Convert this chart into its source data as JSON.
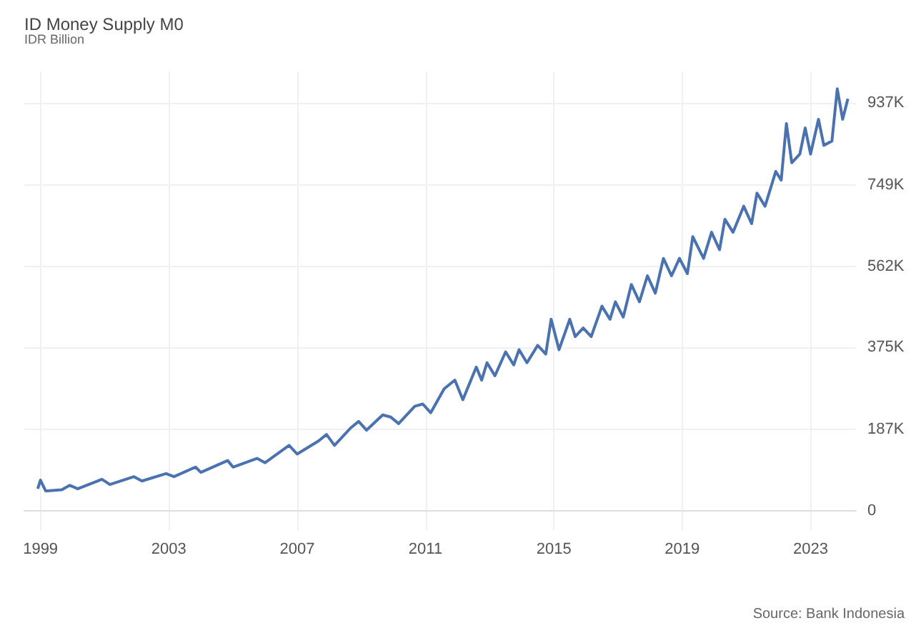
{
  "chart_data": {
    "type": "line",
    "title": "ID Money Supply M0",
    "subtitle": "IDR Billion",
    "annotations": [
      "Source: Bank Indonesia"
    ],
    "x": [
      "1998-12",
      "1999-01",
      "1999-03",
      "1999-09",
      "1999-12",
      "2000-03",
      "2000-12",
      "2001-03",
      "2001-12",
      "2002-03",
      "2002-12",
      "2003-03",
      "2003-11",
      "2004-01",
      "2004-11",
      "2005-01",
      "2005-10",
      "2006-01",
      "2006-10",
      "2007-01",
      "2007-09",
      "2007-12",
      "2008-03",
      "2008-09",
      "2008-12",
      "2009-03",
      "2009-09",
      "2009-12",
      "2010-03",
      "2010-09",
      "2010-12",
      "2011-03",
      "2011-08",
      "2011-12",
      "2012-03",
      "2012-08",
      "2012-10",
      "2012-12",
      "2013-03",
      "2013-07",
      "2013-10",
      "2013-12",
      "2014-03",
      "2014-07",
      "2014-10",
      "2014-12",
      "2015-03",
      "2015-07",
      "2015-09",
      "2015-12",
      "2016-03",
      "2016-07",
      "2016-10",
      "2016-12",
      "2017-03",
      "2017-06",
      "2017-09",
      "2017-12",
      "2018-03",
      "2018-06",
      "2018-09",
      "2018-12",
      "2019-03",
      "2019-05",
      "2019-09",
      "2019-12",
      "2020-03",
      "2020-05",
      "2020-08",
      "2020-12",
      "2021-03",
      "2021-05",
      "2021-08",
      "2021-12",
      "2022-02",
      "2022-04",
      "2022-06",
      "2022-09",
      "2022-11",
      "2023-01",
      "2023-04",
      "2023-06",
      "2023-09",
      "2023-11",
      "2024-01",
      "2024-03"
    ],
    "series": [
      {
        "color": "#4a72b0",
        "values": [
          50000,
          70000,
          45000,
          48000,
          58000,
          50000,
          72000,
          60000,
          78000,
          68000,
          85000,
          78000,
          100000,
          88000,
          115000,
          100000,
          120000,
          110000,
          150000,
          130000,
          160000,
          175000,
          150000,
          190000,
          205000,
          185000,
          220000,
          215000,
          200000,
          240000,
          245000,
          225000,
          280000,
          300000,
          255000,
          330000,
          300000,
          340000,
          310000,
          365000,
          335000,
          370000,
          340000,
          380000,
          360000,
          440000,
          370000,
          440000,
          400000,
          420000,
          400000,
          470000,
          440000,
          480000,
          445000,
          520000,
          480000,
          540000,
          500000,
          580000,
          540000,
          580000,
          545000,
          630000,
          580000,
          640000,
          600000,
          670000,
          640000,
          700000,
          660000,
          730000,
          700000,
          780000,
          760000,
          890000,
          800000,
          820000,
          880000,
          820000,
          900000,
          840000,
          850000,
          970000,
          900000,
          947000
        ]
      }
    ],
    "xlim": [
      "1998-07",
      "2024-06"
    ],
    "xticks": [
      "1999",
      "2003",
      "2007",
      "2011",
      "2015",
      "2019",
      "2023"
    ],
    "ylim": [
      -45000,
      1010000
    ],
    "yticks": [
      0,
      {
        "value": 187000,
        "label": "187K"
      },
      {
        "value": 375000,
        "label": "375K"
      },
      {
        "value": 562000,
        "label": "562K"
      },
      {
        "value": 749000,
        "label": "749K"
      },
      {
        "value": 937000,
        "label": "937K"
      }
    ],
    "grid": true,
    "marker": "none",
    "line_style": "solid"
  }
}
